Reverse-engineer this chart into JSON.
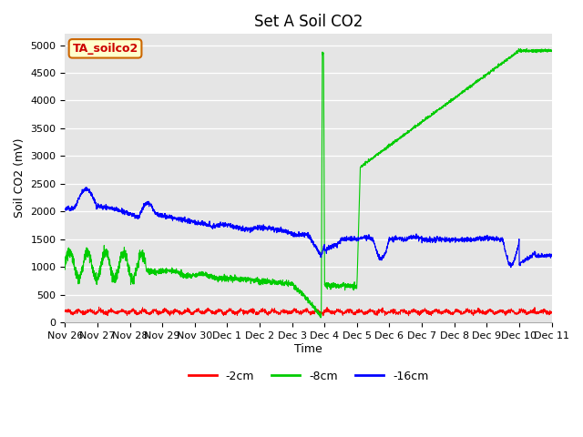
{
  "title": "Set A Soil CO2",
  "ylabel": "Soil CO2 (mV)",
  "xlabel": "Time",
  "legend_label": "TA_soilco2",
  "series_labels": [
    "-2cm",
    "-8cm",
    "-16cm"
  ],
  "series_colors": [
    "#ff0000",
    "#00cc00",
    "#0000ff"
  ],
  "ylim": [
    0,
    5200
  ],
  "yticks": [
    0,
    500,
    1000,
    1500,
    2000,
    2500,
    3000,
    3500,
    4000,
    4500,
    5000
  ],
  "xtick_labels": [
    "Nov 26",
    "Nov 27",
    "Nov 28",
    "Nov 29",
    "Nov 30",
    "Dec 1",
    "Dec 2",
    "Dec 3",
    "Dec 4",
    "Dec 5",
    "Dec 6",
    "Dec 7",
    "Dec 8",
    "Dec 9",
    "Dec 10",
    "Dec 11"
  ],
  "background_color": "#e5e5e5",
  "title_fontsize": 12,
  "axis_label_fontsize": 9,
  "tick_fontsize": 8,
  "legend_box_color": "#ffffcc",
  "legend_box_edge": "#cc6600"
}
